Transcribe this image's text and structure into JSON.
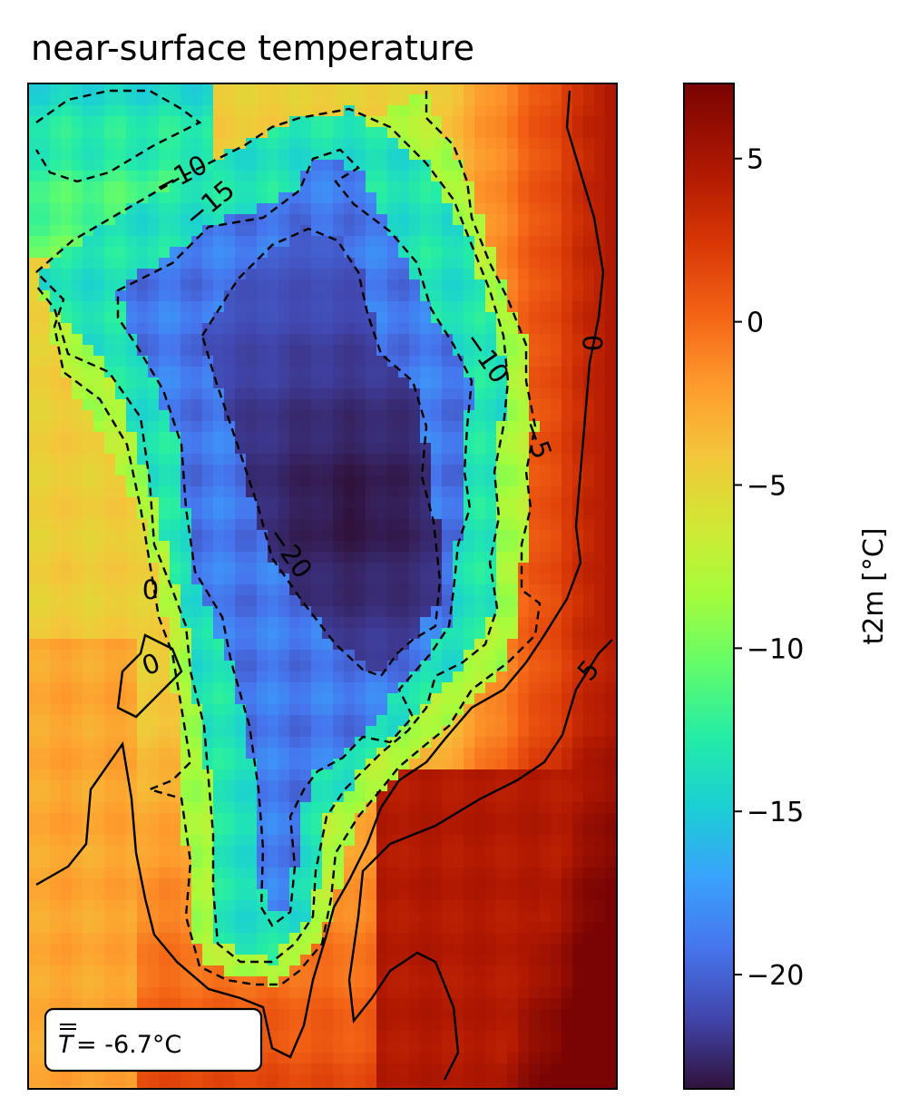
{
  "chart_data": {
    "type": "heatmap",
    "title": "near-surface temperature",
    "colormap": "turbo",
    "colorbar": {
      "label": "t2m [°C]",
      "range": [
        -23.5,
        7.3
      ],
      "ticks": [
        {
          "value": 5,
          "label": "5"
        },
        {
          "value": 0,
          "label": "0"
        },
        {
          "value": -5,
          "label": "−5"
        },
        {
          "value": -10,
          "label": "−10"
        },
        {
          "value": -15,
          "label": "−15"
        },
        {
          "value": -20,
          "label": "−20"
        }
      ]
    },
    "contour_levels": [
      -20,
      -15,
      -10,
      -5,
      0,
      5
    ],
    "contour_labels": [
      "−10",
      "−15",
      "−20",
      "−10",
      "−5",
      "0",
      "0",
      "0",
      "5"
    ],
    "annotation": {
      "symbol": "T",
      "text": " = -6.7°C"
    },
    "grid": false,
    "min_value": -23.5,
    "max_value": 7.3,
    "mean_value": -6.7
  }
}
